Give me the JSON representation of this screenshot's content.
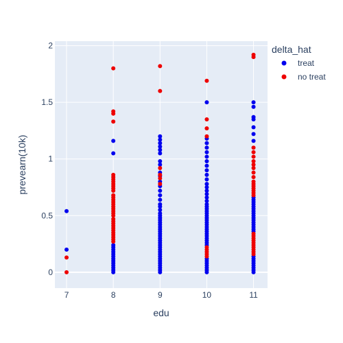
{
  "chart_data": {
    "type": "scatter",
    "xlabel": "edu",
    "ylabel": "prevearn(10k)",
    "xlim": [
      6.75,
      11.3
    ],
    "ylim": [
      -0.14,
      2.04
    ],
    "x_ticks": [
      7,
      8,
      9,
      10,
      11
    ],
    "y_ticks": [
      0,
      0.5,
      1,
      1.5,
      2
    ],
    "x_tick_labels": [
      "7",
      "8",
      "9",
      "10",
      "11"
    ],
    "y_tick_labels": [
      "0",
      "0.5",
      "1",
      "1.5",
      "2"
    ],
    "grid": true,
    "legend": {
      "title": "delta_hat",
      "placement": "right"
    },
    "series": [
      {
        "name": "treat",
        "color": "#0000ee",
        "points": [
          [
            7,
            0.54
          ],
          [
            7,
            0.2
          ],
          [
            8,
            1.16
          ],
          [
            8,
            1.05
          ],
          [
            8,
            0.24
          ],
          [
            8,
            0.22
          ],
          [
            8,
            0.2
          ],
          [
            8,
            0.18
          ],
          [
            8,
            0.16
          ],
          [
            8,
            0.14
          ],
          [
            8,
            0.12
          ],
          [
            8,
            0.1
          ],
          [
            8,
            0.08
          ],
          [
            8,
            0.06
          ],
          [
            8,
            0.04
          ],
          [
            8,
            0.02
          ],
          [
            8,
            0.0
          ],
          [
            9,
            1.2
          ],
          [
            9,
            1.17
          ],
          [
            9,
            1.14
          ],
          [
            9,
            1.11
          ],
          [
            9,
            1.08
          ],
          [
            9,
            1.05
          ],
          [
            9,
            0.98
          ],
          [
            9,
            0.95
          ],
          [
            9,
            0.88
          ],
          [
            9,
            0.85
          ],
          [
            9,
            0.8
          ],
          [
            9,
            0.76
          ],
          [
            9,
            0.72
          ],
          [
            9,
            0.68
          ],
          [
            9,
            0.64
          ],
          [
            9,
            0.6
          ],
          [
            9,
            0.58
          ],
          [
            9,
            0.55
          ],
          [
            9,
            0.52
          ],
          [
            9,
            0.5
          ],
          [
            9,
            0.48
          ],
          [
            9,
            0.46
          ],
          [
            9,
            0.44
          ],
          [
            9,
            0.42
          ],
          [
            9,
            0.4
          ],
          [
            9,
            0.38
          ],
          [
            9,
            0.36
          ],
          [
            9,
            0.34
          ],
          [
            9,
            0.32
          ],
          [
            9,
            0.3
          ],
          [
            9,
            0.28
          ],
          [
            9,
            0.26
          ],
          [
            9,
            0.24
          ],
          [
            9,
            0.22
          ],
          [
            9,
            0.2
          ],
          [
            9,
            0.18
          ],
          [
            9,
            0.16
          ],
          [
            9,
            0.14
          ],
          [
            9,
            0.12
          ],
          [
            9,
            0.1
          ],
          [
            9,
            0.08
          ],
          [
            9,
            0.06
          ],
          [
            9,
            0.04
          ],
          [
            9,
            0.02
          ],
          [
            9,
            0.0
          ],
          [
            10,
            1.5
          ],
          [
            10,
            1.18
          ],
          [
            10,
            1.14
          ],
          [
            10,
            1.1
          ],
          [
            10,
            1.06
          ],
          [
            10,
            1.02
          ],
          [
            10,
            0.98
          ],
          [
            10,
            0.94
          ],
          [
            10,
            0.9
          ],
          [
            10,
            0.86
          ],
          [
            10,
            0.82
          ],
          [
            10,
            0.78
          ],
          [
            10,
            0.75
          ],
          [
            10,
            0.72
          ],
          [
            10,
            0.69
          ],
          [
            10,
            0.66
          ],
          [
            10,
            0.63
          ],
          [
            10,
            0.6
          ],
          [
            10,
            0.58
          ],
          [
            10,
            0.56
          ],
          [
            10,
            0.54
          ],
          [
            10,
            0.52
          ],
          [
            10,
            0.5
          ],
          [
            10,
            0.48
          ],
          [
            10,
            0.46
          ],
          [
            10,
            0.44
          ],
          [
            10,
            0.42
          ],
          [
            10,
            0.4
          ],
          [
            10,
            0.38
          ],
          [
            10,
            0.36
          ],
          [
            10,
            0.34
          ],
          [
            10,
            0.32
          ],
          [
            10,
            0.3
          ],
          [
            10,
            0.28
          ],
          [
            10,
            0.26
          ],
          [
            10,
            0.24
          ],
          [
            10,
            0.12
          ],
          [
            10,
            0.1
          ],
          [
            10,
            0.08
          ],
          [
            10,
            0.06
          ],
          [
            10,
            0.04
          ],
          [
            10,
            0.02
          ],
          [
            10,
            0.0
          ],
          [
            11,
            1.5
          ],
          [
            11,
            1.46
          ],
          [
            11,
            1.37
          ],
          [
            11,
            1.35
          ],
          [
            11,
            1.28
          ],
          [
            11,
            1.22
          ],
          [
            11,
            1.16
          ],
          [
            11,
            0.66
          ],
          [
            11,
            0.64
          ],
          [
            11,
            0.62
          ],
          [
            11,
            0.6
          ],
          [
            11,
            0.58
          ],
          [
            11,
            0.56
          ],
          [
            11,
            0.54
          ],
          [
            11,
            0.52
          ],
          [
            11,
            0.5
          ],
          [
            11,
            0.48
          ],
          [
            11,
            0.46
          ],
          [
            11,
            0.44
          ],
          [
            11,
            0.42
          ],
          [
            11,
            0.4
          ],
          [
            11,
            0.38
          ],
          [
            11,
            0.36
          ],
          [
            11,
            0.14
          ],
          [
            11,
            0.12
          ],
          [
            11,
            0.1
          ],
          [
            11,
            0.08
          ],
          [
            11,
            0.06
          ],
          [
            11,
            0.04
          ],
          [
            11,
            0.02
          ],
          [
            11,
            0.0
          ]
        ]
      },
      {
        "name": "no treat",
        "color": "#ee0000",
        "points": [
          [
            7,
            0.13
          ],
          [
            7,
            0.0
          ],
          [
            8,
            1.8
          ],
          [
            8,
            1.42
          ],
          [
            8,
            1.4
          ],
          [
            8,
            1.33
          ],
          [
            8,
            0.86
          ],
          [
            8,
            0.84
          ],
          [
            8,
            0.82
          ],
          [
            8,
            0.8
          ],
          [
            8,
            0.78
          ],
          [
            8,
            0.76
          ],
          [
            8,
            0.74
          ],
          [
            8,
            0.72
          ],
          [
            8,
            0.68
          ],
          [
            8,
            0.66
          ],
          [
            8,
            0.64
          ],
          [
            8,
            0.62
          ],
          [
            8,
            0.6
          ],
          [
            8,
            0.58
          ],
          [
            8,
            0.56
          ],
          [
            8,
            0.54
          ],
          [
            8,
            0.52
          ],
          [
            8,
            0.5
          ],
          [
            8,
            0.47
          ],
          [
            8,
            0.45
          ],
          [
            8,
            0.43
          ],
          [
            8,
            0.41
          ],
          [
            8,
            0.39
          ],
          [
            8,
            0.37
          ],
          [
            8,
            0.35
          ],
          [
            8,
            0.33
          ],
          [
            8,
            0.31
          ],
          [
            8,
            0.29
          ],
          [
            8,
            0.27
          ],
          [
            9,
            1.82
          ],
          [
            9,
            1.6
          ],
          [
            9,
            0.92
          ],
          [
            9,
            0.86
          ],
          [
            9,
            0.83
          ],
          [
            9,
            0.78
          ],
          [
            10,
            1.69
          ],
          [
            10,
            1.35
          ],
          [
            10,
            1.27
          ],
          [
            10,
            1.2
          ],
          [
            10,
            0.22
          ],
          [
            10,
            0.2
          ],
          [
            10,
            0.18
          ],
          [
            10,
            0.16
          ],
          [
            10,
            0.14
          ],
          [
            11,
            1.92
          ],
          [
            11,
            1.9
          ],
          [
            11,
            1.1
          ],
          [
            11,
            1.06
          ],
          [
            11,
            1.02
          ],
          [
            11,
            0.98
          ],
          [
            11,
            0.95
          ],
          [
            11,
            0.92
          ],
          [
            11,
            0.88
          ],
          [
            11,
            0.84
          ],
          [
            11,
            0.8
          ],
          [
            11,
            0.78
          ],
          [
            11,
            0.76
          ],
          [
            11,
            0.74
          ],
          [
            11,
            0.72
          ],
          [
            11,
            0.7
          ],
          [
            11,
            0.68
          ],
          [
            11,
            0.34
          ],
          [
            11,
            0.32
          ],
          [
            11,
            0.3
          ],
          [
            11,
            0.28
          ],
          [
            11,
            0.26
          ],
          [
            11,
            0.24
          ],
          [
            11,
            0.22
          ],
          [
            11,
            0.2
          ],
          [
            11,
            0.18
          ],
          [
            11,
            0.16
          ]
        ]
      }
    ]
  }
}
